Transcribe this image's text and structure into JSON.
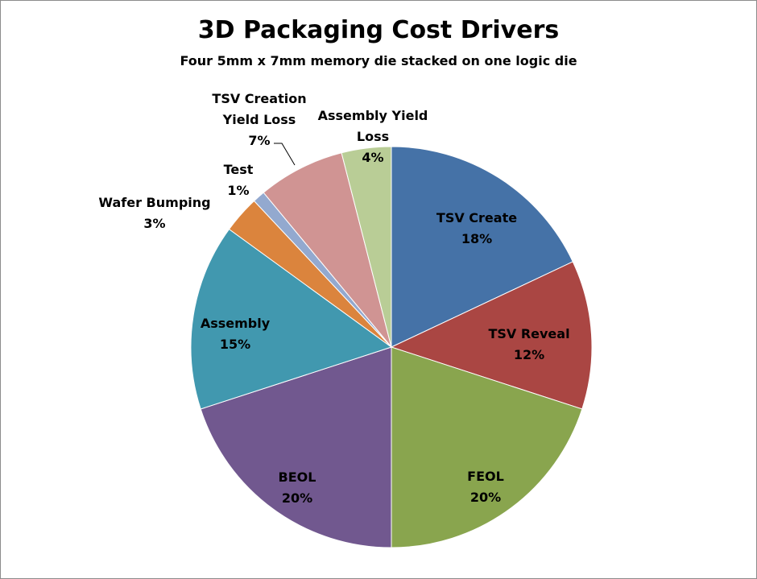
{
  "chart_data": {
    "type": "pie",
    "title": "3D Packaging Cost Drivers",
    "subtitle": "Four 5mm x 7mm memory die stacked on one logic die",
    "start_angle_deg": 0,
    "direction": "clockwise",
    "slices": [
      {
        "label": [
          "TSV Create"
        ],
        "pct_text": "18%",
        "value": 18,
        "color": "#4572a7"
      },
      {
        "label": [
          "TSV Reveal"
        ],
        "pct_text": "12%",
        "value": 12,
        "color": "#aa4643"
      },
      {
        "label": [
          "FEOL"
        ],
        "pct_text": "20%",
        "value": 20,
        "color": "#89a54e"
      },
      {
        "label": [
          "BEOL"
        ],
        "pct_text": "20%",
        "value": 20,
        "color": "#71588f"
      },
      {
        "label": [
          "Assembly"
        ],
        "pct_text": "15%",
        "value": 15,
        "color": "#4198af"
      },
      {
        "label": [
          "Wafer Bumping"
        ],
        "pct_text": "3%",
        "value": 3,
        "color": "#db843d"
      },
      {
        "label": [
          "Test"
        ],
        "pct_text": "1%",
        "value": 1,
        "color": "#93a9cf"
      },
      {
        "label": [
          "TSV Creation",
          "Yield Loss"
        ],
        "pct_text": "7%",
        "value": 7,
        "color": "#d09493"
      },
      {
        "label": [
          "Assembly Yield",
          "Loss"
        ],
        "pct_text": "4%",
        "value": 4,
        "color": "#b9cd96"
      }
    ]
  }
}
